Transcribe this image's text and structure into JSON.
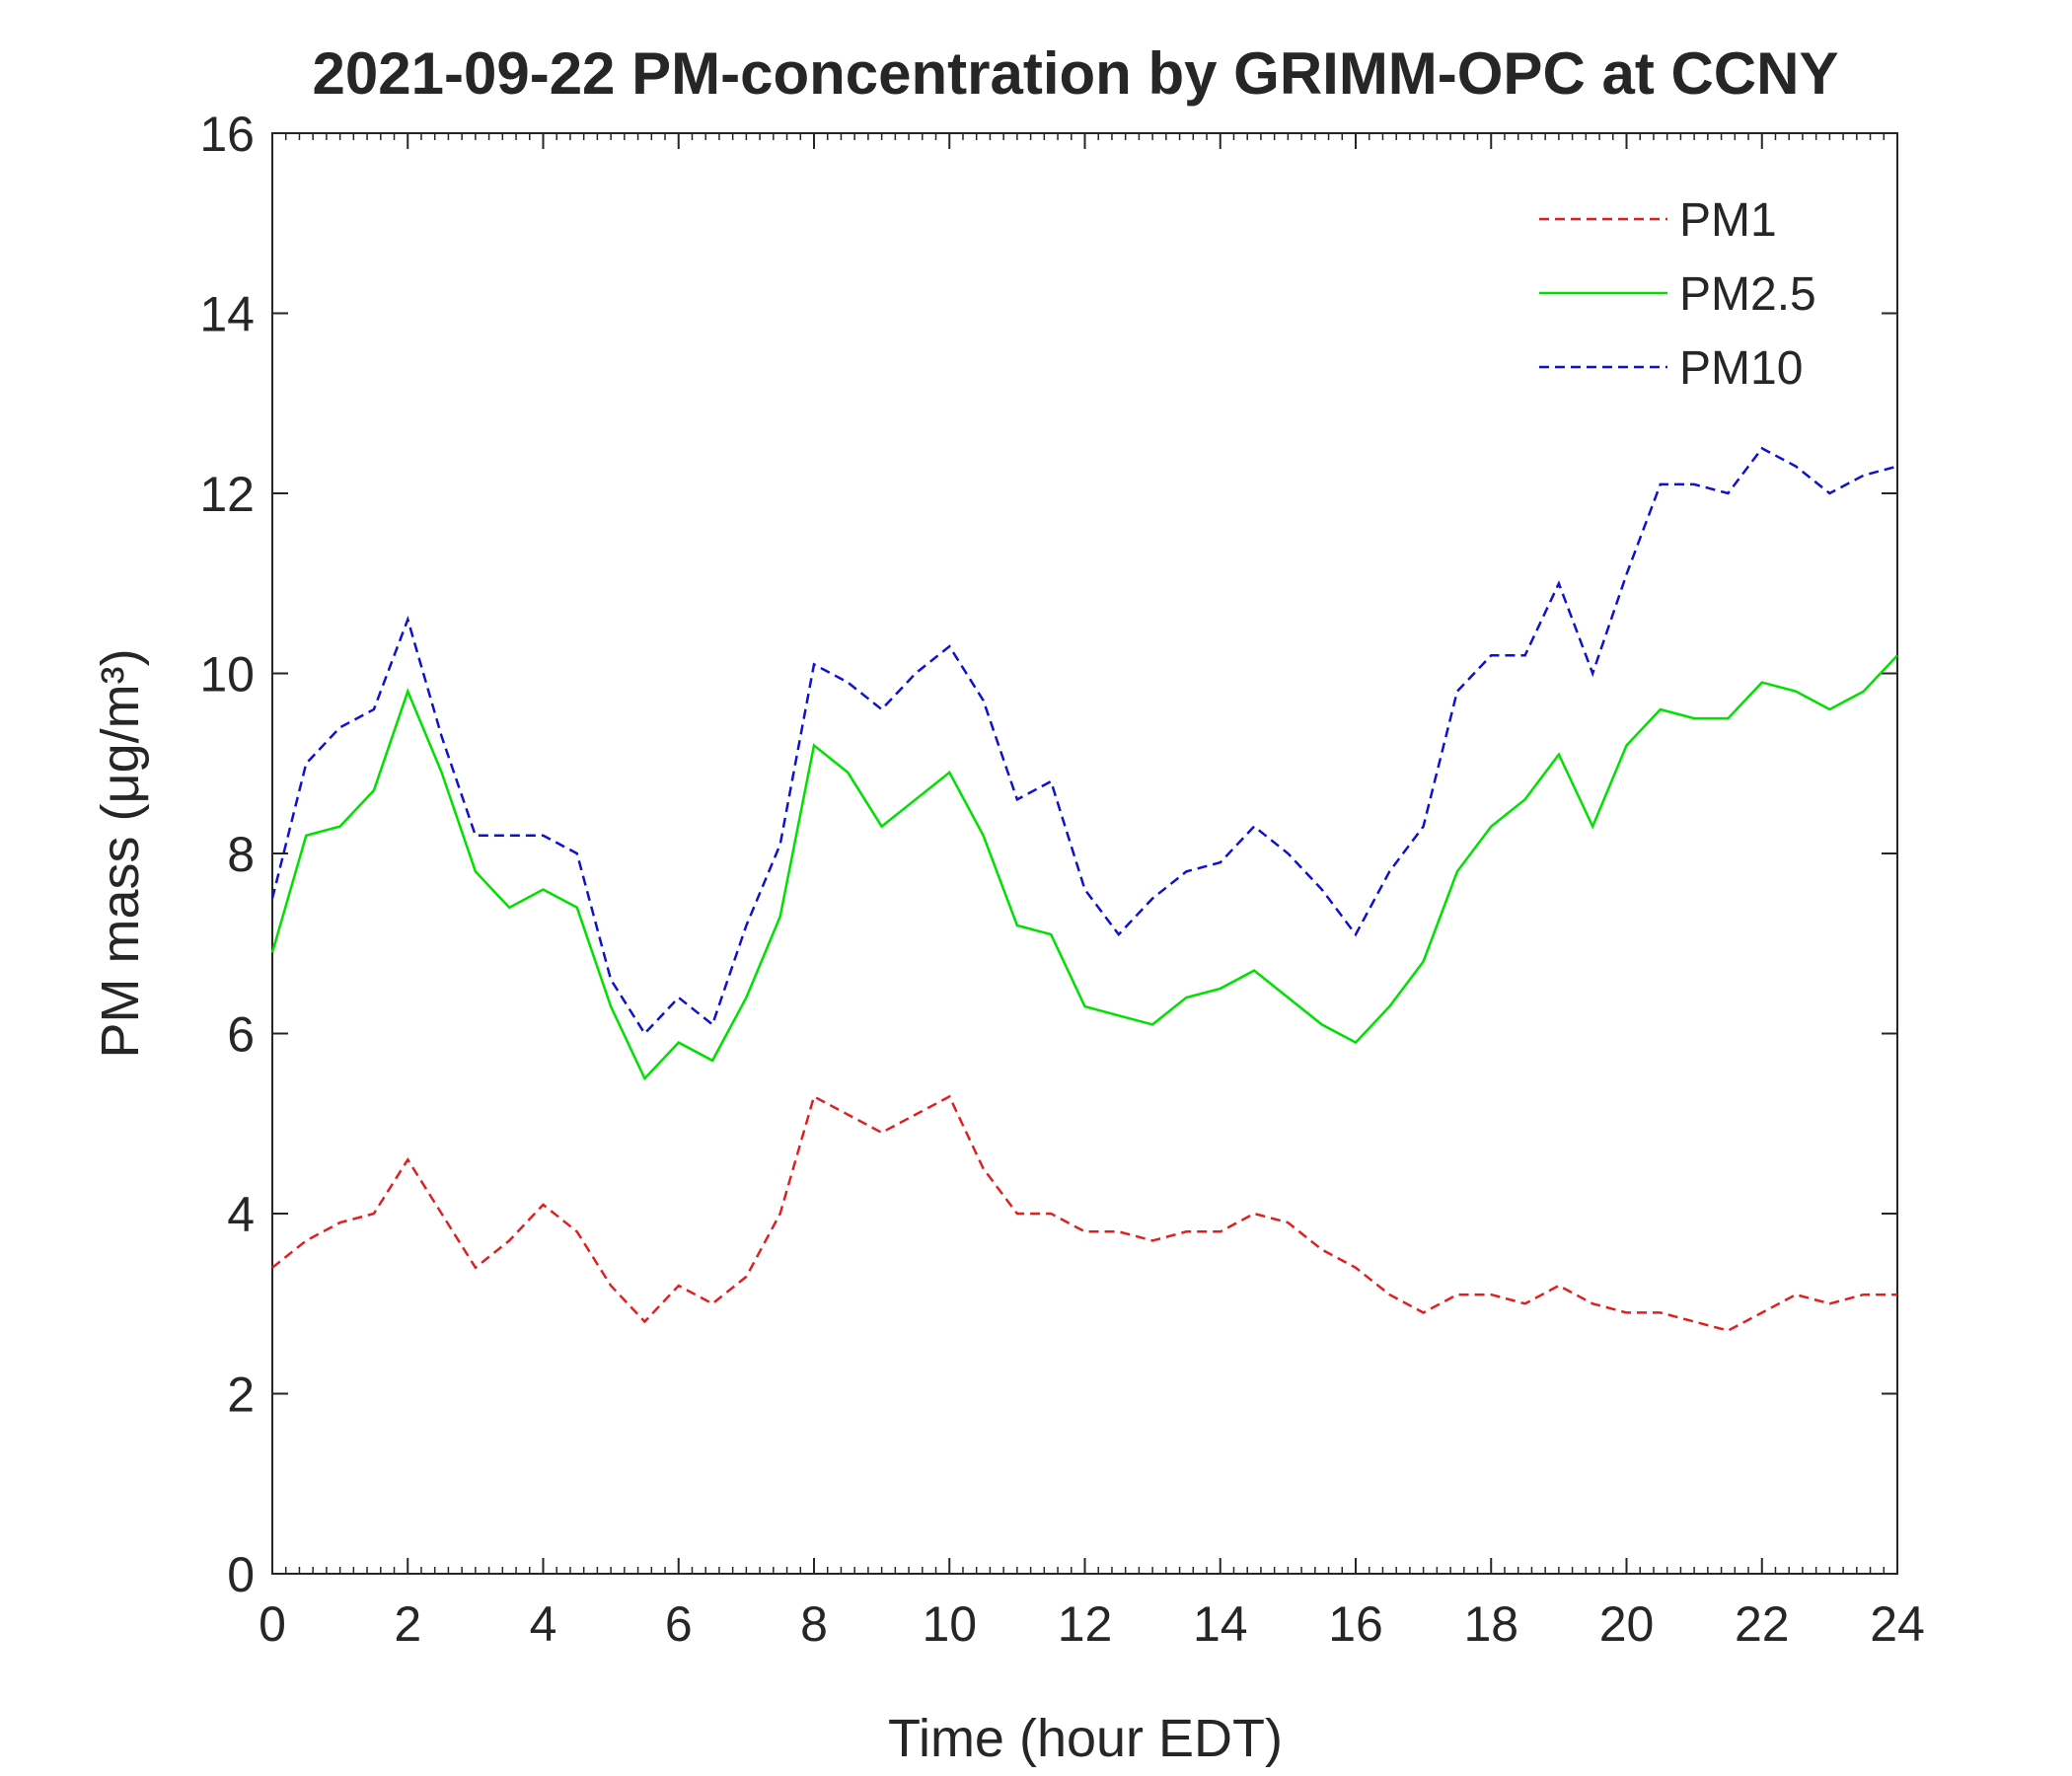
{
  "chart_data": {
    "type": "line",
    "title": "2021-09-22 PM-concentration by GRIMM-OPC at CCNY",
    "xlabel": "Time (hour EDT)",
    "ylabel": "PM mass (μg/m³)",
    "x": [
      0,
      0.5,
      1,
      1.5,
      2,
      2.5,
      3,
      3.5,
      4,
      4.5,
      5,
      5.5,
      6,
      6.5,
      7,
      7.5,
      8,
      8.5,
      9,
      9.5,
      10,
      10.5,
      11,
      11.5,
      12,
      12.5,
      13,
      13.5,
      14,
      14.5,
      15,
      15.5,
      16,
      16.5,
      17,
      17.5,
      18,
      18.5,
      19,
      19.5,
      20,
      20.5,
      21,
      21.5,
      22,
      22.5,
      23,
      23.5,
      24
    ],
    "series": [
      {
        "name": "PM1",
        "color": "#e02020",
        "dash": true,
        "values": [
          3.4,
          3.7,
          3.9,
          4.0,
          4.6,
          4.0,
          3.4,
          3.7,
          4.1,
          3.8,
          3.2,
          2.8,
          3.2,
          3.0,
          3.3,
          4.0,
          5.3,
          5.1,
          4.9,
          5.1,
          5.3,
          4.5,
          4.0,
          4.0,
          3.8,
          3.8,
          3.7,
          3.8,
          3.8,
          4.0,
          3.9,
          3.6,
          3.4,
          3.1,
          2.9,
          3.1,
          3.1,
          3.0,
          3.2,
          3.0,
          2.9,
          2.9,
          2.8,
          2.7,
          2.9,
          3.1,
          3.0,
          3.1,
          3.1
        ]
      },
      {
        "name": "PM2.5",
        "color": "#00e000",
        "dash": false,
        "values": [
          6.9,
          8.2,
          8.3,
          8.7,
          9.8,
          8.9,
          7.8,
          7.4,
          7.6,
          7.4,
          6.3,
          5.5,
          5.9,
          5.7,
          6.4,
          7.3,
          9.2,
          8.9,
          8.3,
          8.6,
          8.9,
          8.2,
          7.2,
          7.1,
          6.3,
          6.2,
          6.1,
          6.4,
          6.5,
          6.7,
          6.4,
          6.1,
          5.9,
          6.3,
          6.8,
          7.8,
          8.3,
          8.6,
          9.1,
          8.3,
          9.2,
          9.6,
          9.5,
          9.5,
          9.9,
          9.8,
          9.6,
          9.8,
          10.2
        ]
      },
      {
        "name": "PM10",
        "color": "#1010d0",
        "dash": true,
        "values": [
          7.5,
          9.0,
          9.4,
          9.6,
          10.6,
          9.3,
          8.2,
          8.2,
          8.2,
          8.0,
          6.6,
          6.0,
          6.4,
          6.1,
          7.2,
          8.1,
          10.1,
          9.9,
          9.6,
          10.0,
          10.3,
          9.7,
          8.6,
          8.8,
          7.6,
          7.1,
          7.5,
          7.8,
          7.9,
          8.3,
          8.0,
          7.6,
          7.1,
          7.8,
          8.3,
          9.8,
          10.2,
          10.2,
          11.0,
          10.0,
          11.1,
          12.1,
          12.1,
          12.0,
          12.5,
          12.3,
          12.0,
          12.2,
          12.3
        ]
      }
    ],
    "xlim": [
      0,
      24
    ],
    "xticks": [
      0,
      2,
      4,
      6,
      8,
      10,
      12,
      14,
      16,
      18,
      20,
      22,
      24
    ],
    "ylim": [
      0,
      16
    ],
    "yticks": [
      0,
      2,
      4,
      6,
      8,
      10,
      12,
      14,
      16
    ],
    "legend": "upper right"
  }
}
